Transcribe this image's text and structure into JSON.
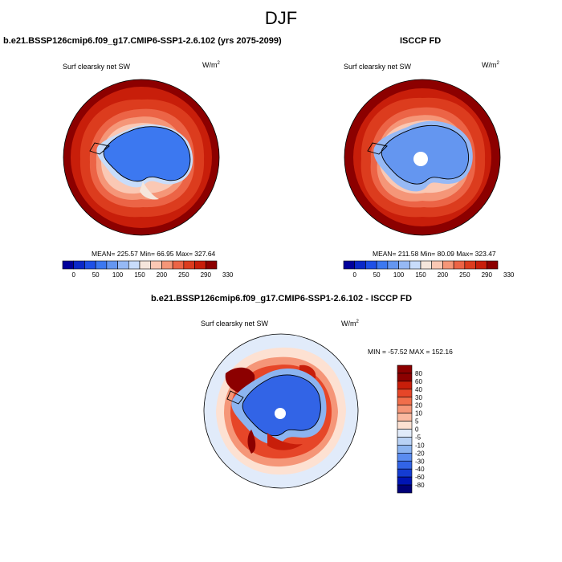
{
  "figure": {
    "title": "DJF"
  },
  "panels": [
    {
      "id": "model",
      "title": "b.e21.BSSP126cmip6.f09_g17.CMIP6-SSP1-2.6.102 (yrs 2075-2099)",
      "variable": "Surf clearsky net SW",
      "units_base": "W/m",
      "units_exp": "2",
      "stats": "MEAN= 225.57  Min=  66.95  Max= 327.64",
      "colorbar_labels": [
        "0",
        "50",
        "100",
        "150",
        "200",
        "250",
        "290",
        "330"
      ]
    },
    {
      "id": "obs",
      "title": "ISCCP FD",
      "variable": "Surf clearsky net SW",
      "units_base": "W/m",
      "units_exp": "2",
      "stats": "MEAN= 211.58  Min=  80.09  Max= 323.47",
      "colorbar_labels": [
        "0",
        "50",
        "100",
        "150",
        "200",
        "250",
        "290",
        "330"
      ]
    },
    {
      "id": "diff",
      "title": "b.e21.BSSP126cmip6.f09_g17.CMIP6-SSP1-2.6.102 - ISCCP FD",
      "variable": "Surf clearsky net SW",
      "units_base": "W/m",
      "units_exp": "2",
      "stats": "MIN = -57.52 MAX = 152.16",
      "colorbar_labels": [
        "80",
        "60",
        "40",
        "30",
        "20",
        "10",
        "5",
        "0",
        "-5",
        "-10",
        "-20",
        "-30",
        "-40",
        "-60",
        "-80"
      ]
    }
  ],
  "colors": {
    "abs_scale": [
      "#00009a",
      "#0a28c8",
      "#1e50e6",
      "#3c78f0",
      "#6496f0",
      "#96b9f5",
      "#c8dcfa",
      "#f5e6dc",
      "#fac8b4",
      "#f59678",
      "#ec6446",
      "#dc3c1e",
      "#c81e0a",
      "#8c0000"
    ],
    "diff_scale": [
      "#8c0000",
      "#c81e0a",
      "#e64628",
      "#f06e4b",
      "#f59678",
      "#fab9a0",
      "#fde1d2",
      "#e1ebfa",
      "#b9d2f5",
      "#8cb4f0",
      "#5a8cf0",
      "#3264e6",
      "#143cd2",
      "#0014b4",
      "#000078"
    ],
    "coast": "#000000"
  }
}
